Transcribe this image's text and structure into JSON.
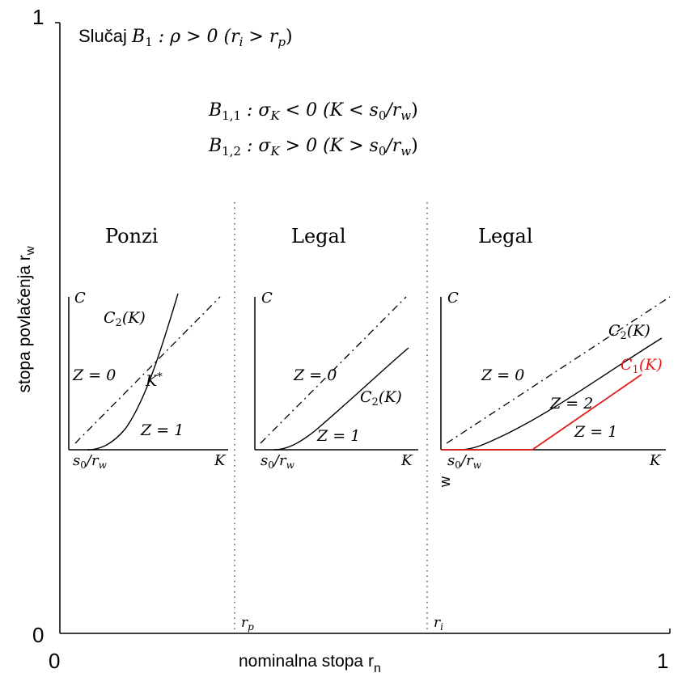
{
  "axes": {
    "y_top": "1",
    "y_bottom": "0",
    "x_left": "0",
    "x_right": "1",
    "y_label_main": "stopa povlačenja r",
    "y_label_sub": "w",
    "x_label_main": "nominalna stopa r",
    "x_label_sub": "n"
  },
  "heading": {
    "prefix": "Slučaj ",
    "case_name": "B",
    "case_sub": "1",
    "condition": " : ρ > 0 (r",
    "ri_sub": "i",
    "mid": " > r",
    "rp_sub": "p",
    "close": ")"
  },
  "subcases": [
    {
      "name": "B",
      "sub": "1,1",
      "text": " :  σ",
      "sigma_sub": "K",
      "rel": " < 0 (K < s",
      "s_sub": "0",
      "slash": "/r",
      "r_sub": "w",
      "close": ")"
    },
    {
      "name": "B",
      "sub": "1,2",
      "text": " :  σ",
      "sigma_sub": "K",
      "rel": " > 0 (K > s",
      "s_sub": "0",
      "slash": "/r",
      "r_sub": "w",
      "close": ")"
    }
  ],
  "regions": [
    {
      "title": "Ponzi"
    },
    {
      "title": "Legal"
    },
    {
      "title": "Legal"
    }
  ],
  "boundaries": [
    {
      "name": "r",
      "sub": "p"
    },
    {
      "name": "r",
      "sub": "i"
    }
  ],
  "panels": {
    "y_axis_name": "C",
    "x_axis_name": "K",
    "s0rw": {
      "s": "s",
      "s_sub": "0",
      "slash": "/r",
      "r_sub": "w"
    },
    "z0": "Z = 0",
    "z1": "Z = 1",
    "z2": "Z = 2",
    "c2": {
      "name": "C",
      "sub": "2",
      "arg": "(K)"
    },
    "c1": {
      "name": "C",
      "sub": "1",
      "arg": "(K)"
    },
    "kstar": {
      "name": "K",
      "sup": "*"
    },
    "stray_label": "w"
  },
  "colors": {
    "line": "#000000",
    "highlight": "#e31b1b",
    "dotted": "#555555"
  }
}
